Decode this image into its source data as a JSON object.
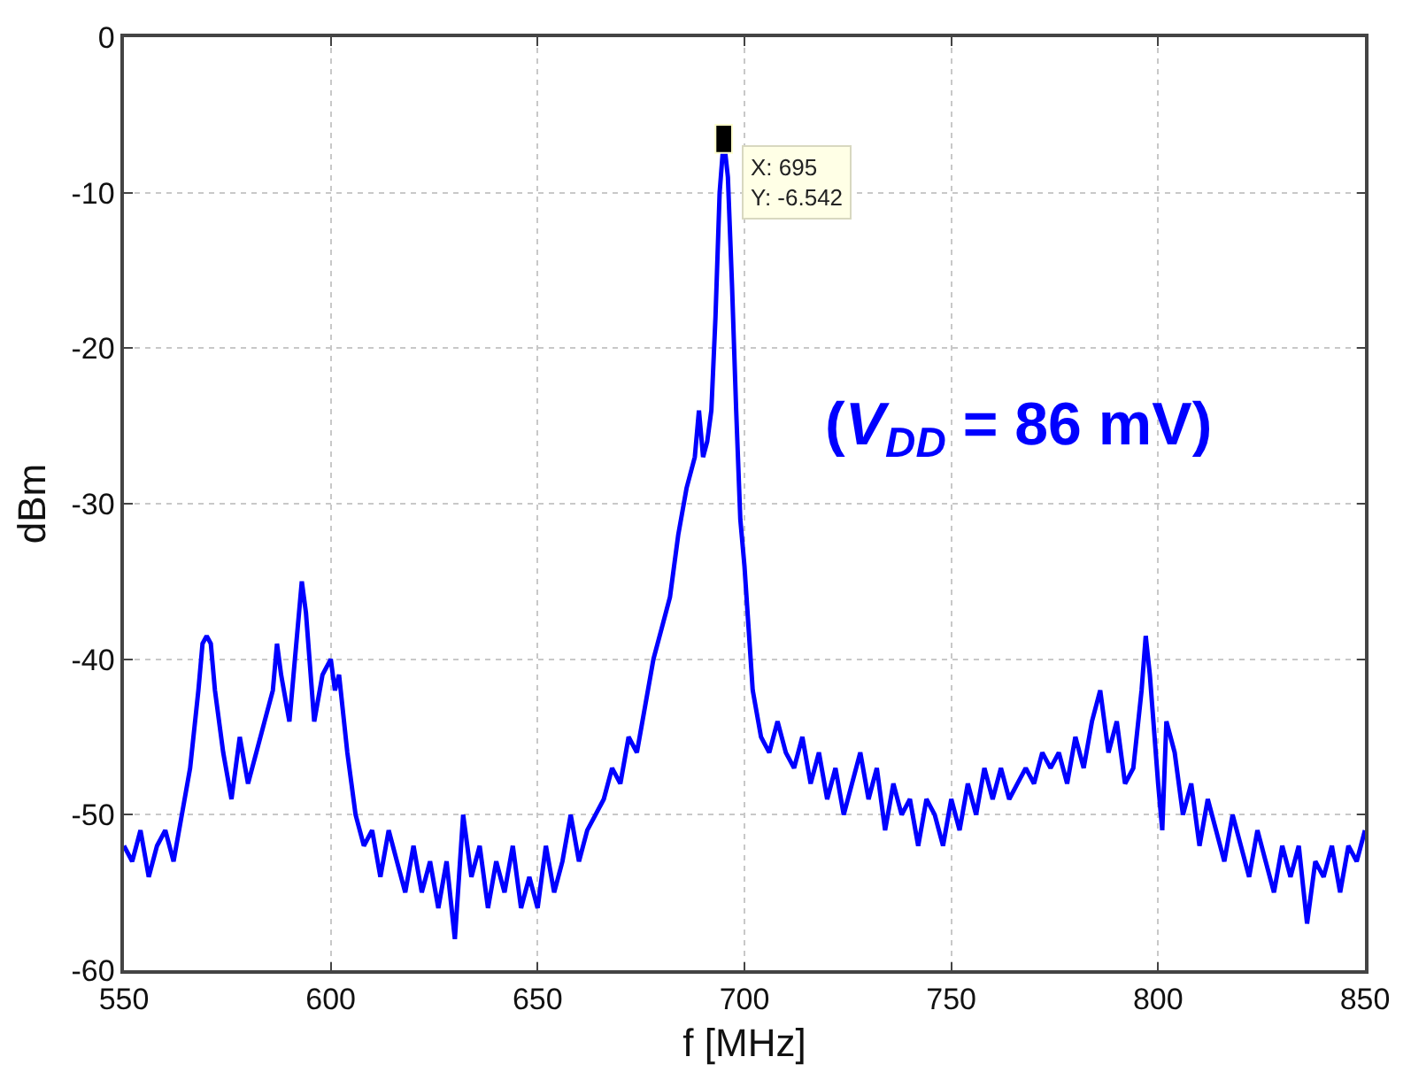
{
  "chart_data": {
    "type": "line",
    "xlabel": "f [MHz]",
    "ylabel": "dBm",
    "xlim": [
      550,
      850
    ],
    "xticks": [
      550,
      600,
      650,
      700,
      750,
      800,
      850
    ],
    "ylim": [
      -60,
      0
    ],
    "yticks": [
      -60,
      -50,
      -40,
      -30,
      -20,
      -10,
      0
    ],
    "grid": true,
    "legend": false,
    "marker": "none",
    "line_style": "solid",
    "annotations": [
      {
        "text": "X: 695\nY: -6.542",
        "x": 695,
        "y": -6.542
      },
      "(V$_{DD}$ = 86 mV)"
    ],
    "series": [
      {
        "color": "#0000ff",
        "x": [
          550,
          552,
          554,
          556,
          558,
          560,
          562,
          564,
          566,
          568,
          569,
          570,
          571,
          572,
          574,
          576,
          578,
          580,
          582,
          584,
          586,
          587,
          588,
          590,
          592,
          593,
          594,
          596,
          598,
          600,
          601,
          602,
          604,
          606,
          608,
          610,
          612,
          614,
          616,
          618,
          620,
          622,
          624,
          626,
          628,
          630,
          632,
          634,
          636,
          638,
          640,
          642,
          644,
          646,
          648,
          650,
          652,
          654,
          656,
          658,
          660,
          662,
          664,
          666,
          668,
          670,
          672,
          674,
          676,
          678,
          680,
          682,
          684,
          686,
          688,
          689,
          690,
          691,
          692,
          693,
          694,
          695,
          696,
          697,
          698,
          699,
          700,
          701,
          702,
          704,
          706,
          708,
          710,
          712,
          714,
          716,
          718,
          720,
          722,
          724,
          726,
          728,
          730,
          732,
          734,
          736,
          738,
          740,
          742,
          744,
          746,
          748,
          750,
          752,
          754,
          756,
          758,
          760,
          762,
          764,
          766,
          768,
          770,
          772,
          774,
          776,
          778,
          780,
          782,
          784,
          786,
          788,
          790,
          792,
          794,
          796,
          797,
          798,
          800,
          801,
          802,
          804,
          806,
          808,
          810,
          812,
          814,
          816,
          818,
          820,
          822,
          824,
          826,
          828,
          830,
          832,
          834,
          836,
          838,
          840,
          842,
          844,
          846,
          848,
          850
        ],
        "values": [
          -52,
          -53,
          -51,
          -54,
          -52,
          -51,
          -53,
          -50,
          -47,
          -42,
          -39,
          -38.5,
          -39,
          -42,
          -46,
          -49,
          -45,
          -48,
          -46,
          -44,
          -42,
          -39,
          -41,
          -44,
          -38,
          -35,
          -37,
          -44,
          -41,
          -40,
          -42,
          -41,
          -46,
          -50,
          -52,
          -51,
          -54,
          -51,
          -53,
          -55,
          -52,
          -55,
          -53,
          -56,
          -53,
          -58,
          -50,
          -54,
          -52,
          -56,
          -53,
          -55,
          -52,
          -56,
          -54,
          -56,
          -52,
          -55,
          -53,
          -50,
          -53,
          -51,
          -50,
          -49,
          -47,
          -48,
          -45,
          -46,
          -43,
          -40,
          -38,
          -36,
          -32,
          -29,
          -27,
          -24,
          -27,
          -26,
          -24,
          -18,
          -10,
          -6.542,
          -9,
          -16,
          -24,
          -31,
          -34,
          -38,
          -42,
          -45,
          -46,
          -44,
          -46,
          -47,
          -45,
          -48,
          -46,
          -49,
          -47,
          -50,
          -48,
          -46,
          -49,
          -47,
          -51,
          -48,
          -50,
          -49,
          -52,
          -49,
          -50,
          -52,
          -49,
          -51,
          -48,
          -50,
          -47,
          -49,
          -47,
          -49,
          -48,
          -47,
          -48,
          -46,
          -47,
          -46,
          -48,
          -45,
          -47,
          -44,
          -42,
          -46,
          -44,
          -48,
          -47,
          -42,
          -38.5,
          -41,
          -48,
          -51,
          -44,
          -46,
          -50,
          -48,
          -52,
          -49,
          -51,
          -53,
          -50,
          -52,
          -54,
          -51,
          -53,
          -55,
          -52,
          -54,
          -52,
          -57,
          -53,
          -54,
          -52,
          -55,
          -52,
          -53,
          -51
        ]
      }
    ]
  }
}
